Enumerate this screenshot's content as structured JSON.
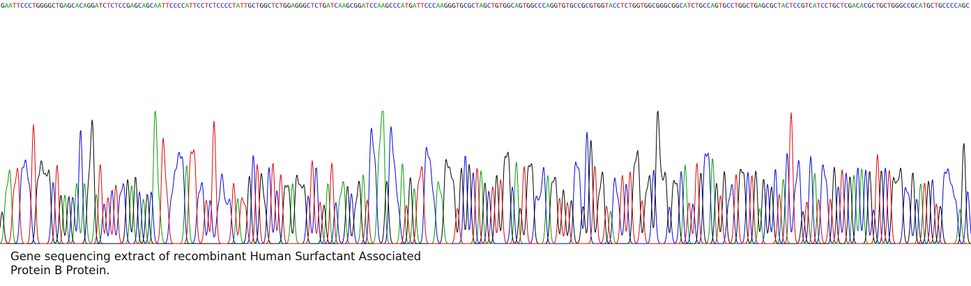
{
  "sequence": "GAATTCCCTGGGGCTGAGCACAGGATCTCTCCGAGCAGCAATTCCCCATTCCTCTCCCCTATTGCTGGCTCTGGAGGGCTCTGATCAAGCGGATCCAAGCCCATGATTCCCAAGGGTGCGCTAGCTGTGGCAGTGGCCCAGGTGTGCCGCGTGGTACCTCTGGTGGCGGGCGGCATCTGCCAGTGCCTGGCTGAGCGCTACTCCGTCATCCTGCTCGACACGCTGCTGGGCCGCATGCTGCCCCAGC",
  "caption": "Gene sequencing extract of recombinant Human Surfactant Associated Protein B Protein."
}
